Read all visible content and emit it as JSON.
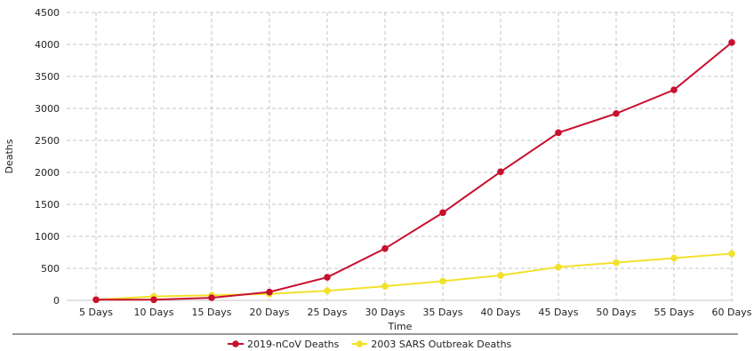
{
  "chart_data": {
    "type": "line",
    "title": "",
    "xlabel": "Time",
    "ylabel": "Deaths",
    "categories": [
      "5 Days",
      "10 Days",
      "15 Days",
      "20 Days",
      "25 Days",
      "30 Days",
      "35 Days",
      "40 Days",
      "45 Days",
      "50 Days",
      "55 Days",
      "60 Days"
    ],
    "ylim": [
      0,
      4500
    ],
    "yticks": [
      0,
      500,
      1000,
      1500,
      2000,
      2500,
      3000,
      3500,
      4000,
      4500
    ],
    "grid": true,
    "legend_position": "bottom",
    "series": [
      {
        "name": "2019-nCoV Deaths",
        "color": "#c8102e",
        "values": [
          10,
          10,
          40,
          130,
          360,
          810,
          1370,
          2010,
          2620,
          2920,
          3290,
          4030
        ]
      },
      {
        "name": "2003 SARS Outbreak Deaths",
        "color": "#f2e12a",
        "values": [
          10,
          60,
          80,
          100,
          150,
          220,
          300,
          390,
          520,
          590,
          660,
          730
        ]
      }
    ]
  }
}
